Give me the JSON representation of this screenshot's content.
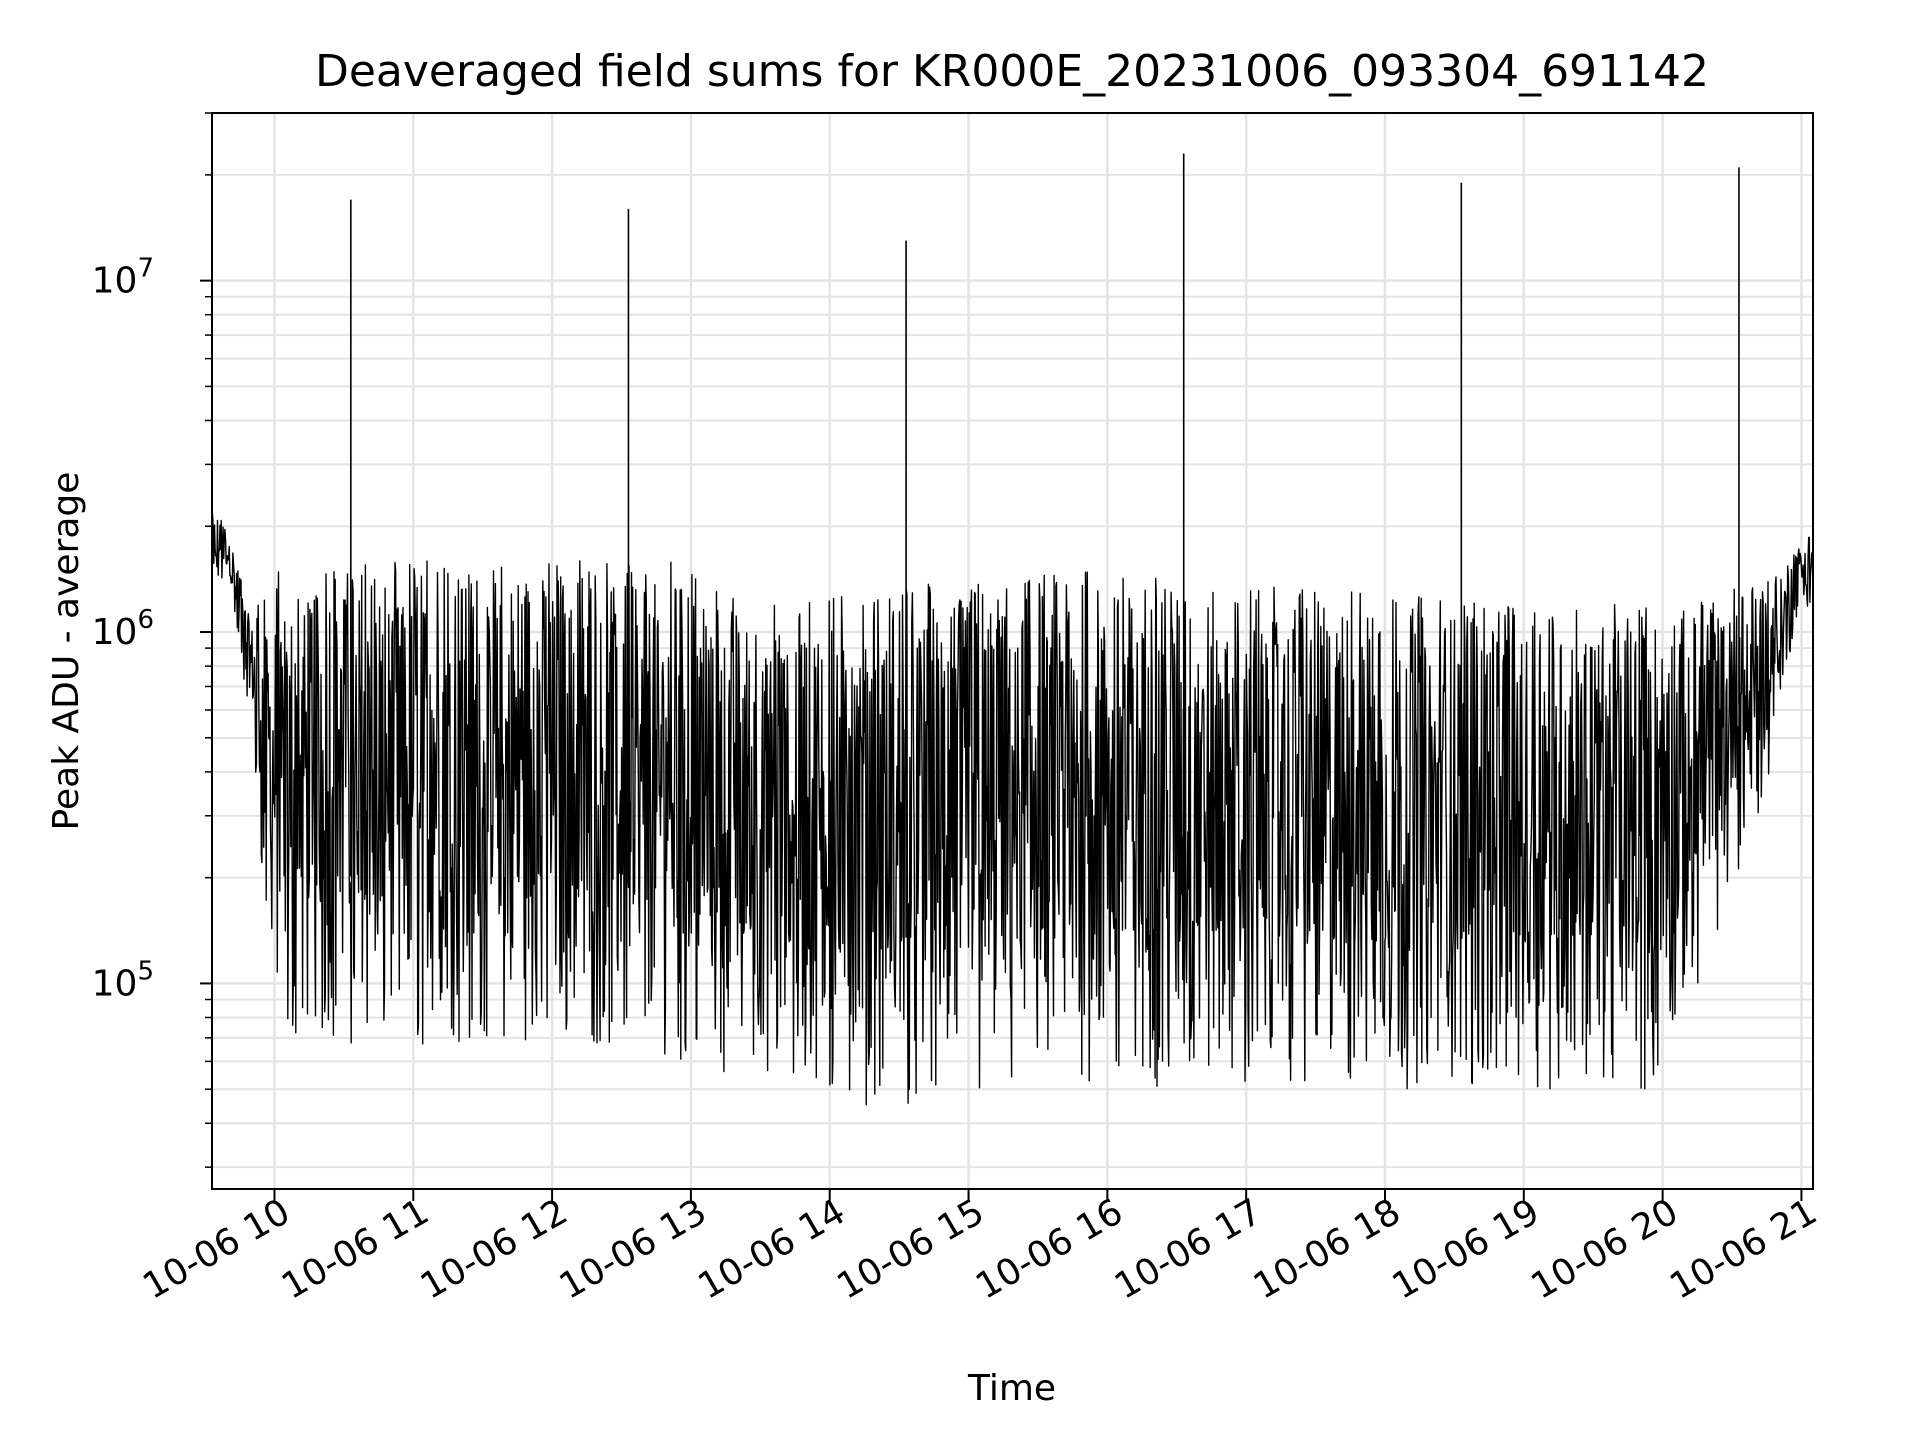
{
  "chart_data": {
    "type": "line",
    "title": "Deaveraged field sums for KR000E_20231006_093304_691142",
    "xlabel": "Time",
    "ylabel": "Peak ADU - average",
    "x_scale": "time",
    "y_scale": "log",
    "xlim": [
      "2023-10-06 09:33",
      "2023-10-06 21:05"
    ],
    "ylim": [
      26000,
      30000000
    ],
    "grid": true,
    "line_color": "#000000",
    "x_ticks": [
      {
        "value": "2023-10-06 10:00",
        "label": "10-06 10"
      },
      {
        "value": "2023-10-06 11:00",
        "label": "10-06 11"
      },
      {
        "value": "2023-10-06 12:00",
        "label": "10-06 12"
      },
      {
        "value": "2023-10-06 13:00",
        "label": "10-06 13"
      },
      {
        "value": "2023-10-06 14:00",
        "label": "10-06 14"
      },
      {
        "value": "2023-10-06 15:00",
        "label": "10-06 15"
      },
      {
        "value": "2023-10-06 16:00",
        "label": "10-06 16"
      },
      {
        "value": "2023-10-06 17:00",
        "label": "10-06 17"
      },
      {
        "value": "2023-10-06 18:00",
        "label": "10-06 18"
      },
      {
        "value": "2023-10-06 19:00",
        "label": "10-06 19"
      },
      {
        "value": "2023-10-06 20:00",
        "label": "10-06 20"
      },
      {
        "value": "2023-10-06 21:00",
        "label": "10-06 21"
      }
    ],
    "y_ticks": [
      {
        "value": 100000,
        "base": "10",
        "exp": "5"
      },
      {
        "value": 1000000,
        "base": "10",
        "exp": "6"
      },
      {
        "value": 10000000,
        "base": "10",
        "exp": "7"
      }
    ],
    "series": [
      {
        "name": "",
        "spikes": [
          {
            "x": "2023-10-06 10:33",
            "y": 17000000
          },
          {
            "x": "2023-10-06 12:33",
            "y": 16000000
          },
          {
            "x": "2023-10-06 14:33",
            "y": 13000000
          },
          {
            "x": "2023-10-06 16:33",
            "y": 23000000
          },
          {
            "x": "2023-10-06 18:33",
            "y": 19000000
          },
          {
            "x": "2023-10-06 20:33",
            "y": 21000000
          }
        ],
        "upper_envelope": [
          {
            "x": "2023-10-06 09:33",
            "y": 2400000
          },
          {
            "x": "2023-10-06 09:40",
            "y": 1900000
          },
          {
            "x": "2023-10-06 09:50",
            "y": 1200000
          },
          {
            "x": "2023-10-06 10:00",
            "y": 1500000
          },
          {
            "x": "2023-10-06 11:00",
            "y": 1600000
          },
          {
            "x": "2023-10-06 12:00",
            "y": 1600000
          },
          {
            "x": "2023-10-06 12:50",
            "y": 1600000
          },
          {
            "x": "2023-10-06 13:30",
            "y": 1200000
          },
          {
            "x": "2023-10-06 14:00",
            "y": 1300000
          },
          {
            "x": "2023-10-06 15:00",
            "y": 1400000
          },
          {
            "x": "2023-10-06 16:00",
            "y": 1500000
          },
          {
            "x": "2023-10-06 17:00",
            "y": 1400000
          },
          {
            "x": "2023-10-06 18:00",
            "y": 1300000
          },
          {
            "x": "2023-10-06 19:00",
            "y": 1200000
          },
          {
            "x": "2023-10-06 20:00",
            "y": 1200000
          },
          {
            "x": "2023-10-06 20:45",
            "y": 1400000
          },
          {
            "x": "2023-10-06 21:00",
            "y": 1800000
          },
          {
            "x": "2023-10-06 21:05",
            "y": 1900000
          }
        ],
        "lower_envelope": [
          {
            "x": "2023-10-06 09:33",
            "y": 1300000
          },
          {
            "x": "2023-10-06 09:40",
            "y": 1400000
          },
          {
            "x": "2023-10-06 09:50",
            "y": 500000
          },
          {
            "x": "2023-10-06 10:00",
            "y": 70000
          },
          {
            "x": "2023-10-06 11:00",
            "y": 65000
          },
          {
            "x": "2023-10-06 12:00",
            "y": 70000
          },
          {
            "x": "2023-10-06 13:00",
            "y": 60000
          },
          {
            "x": "2023-10-06 14:00",
            "y": 45000
          },
          {
            "x": "2023-10-06 15:00",
            "y": 45000
          },
          {
            "x": "2023-10-06 16:00",
            "y": 50000
          },
          {
            "x": "2023-10-06 17:00",
            "y": 50000
          },
          {
            "x": "2023-10-06 18:00",
            "y": 50000
          },
          {
            "x": "2023-10-06 19:00",
            "y": 50000
          },
          {
            "x": "2023-10-06 20:00",
            "y": 50000
          },
          {
            "x": "2023-10-06 20:45",
            "y": 350000
          },
          {
            "x": "2023-10-06 21:00",
            "y": 1300000
          },
          {
            "x": "2023-10-06 21:05",
            "y": 1000000
          }
        ]
      }
    ]
  }
}
